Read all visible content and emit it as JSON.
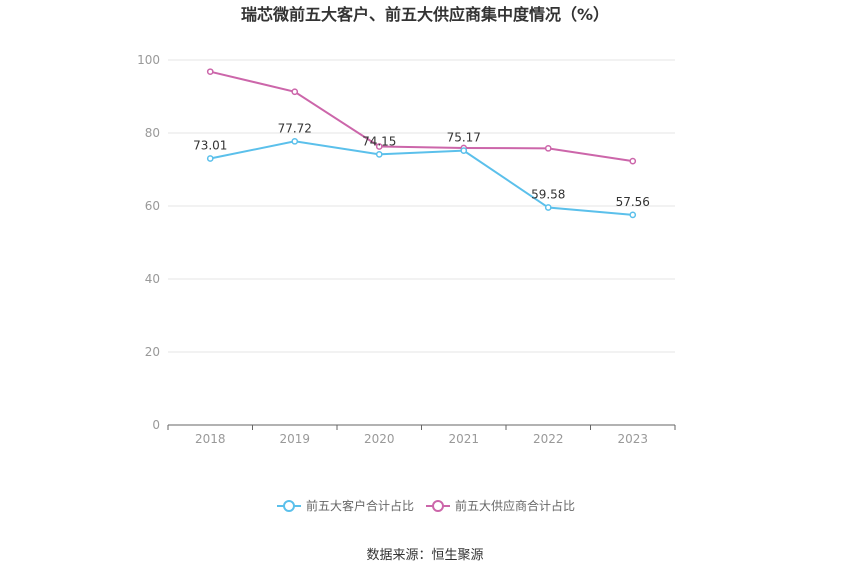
{
  "chart_data": {
    "type": "line",
    "title": "瑞芯微前五大客户、前五大供应商集中度情况（%）",
    "categories": [
      "2018",
      "2019",
      "2020",
      "2021",
      "2022",
      "2023"
    ],
    "ylim": [
      0,
      100
    ],
    "yticks": [
      "0",
      "20",
      "40",
      "60",
      "80",
      "100"
    ],
    "grid": true,
    "legend_position": "bottom",
    "series": [
      {
        "name": "前五大客户合计占比",
        "color": "#5bc0eb",
        "values": [
          73.01,
          77.72,
          74.15,
          75.17,
          59.58,
          57.56
        ],
        "labels": [
          "73.01",
          "77.72",
          "74.15",
          "75.17",
          "59.58",
          "57.56"
        ]
      },
      {
        "name": "前五大供应商合计占比",
        "color": "#cc66aa",
        "values": [
          96.8,
          91.3,
          76.3,
          75.9,
          75.8,
          72.3
        ]
      }
    ]
  },
  "source": "数据来源：恒生聚源"
}
